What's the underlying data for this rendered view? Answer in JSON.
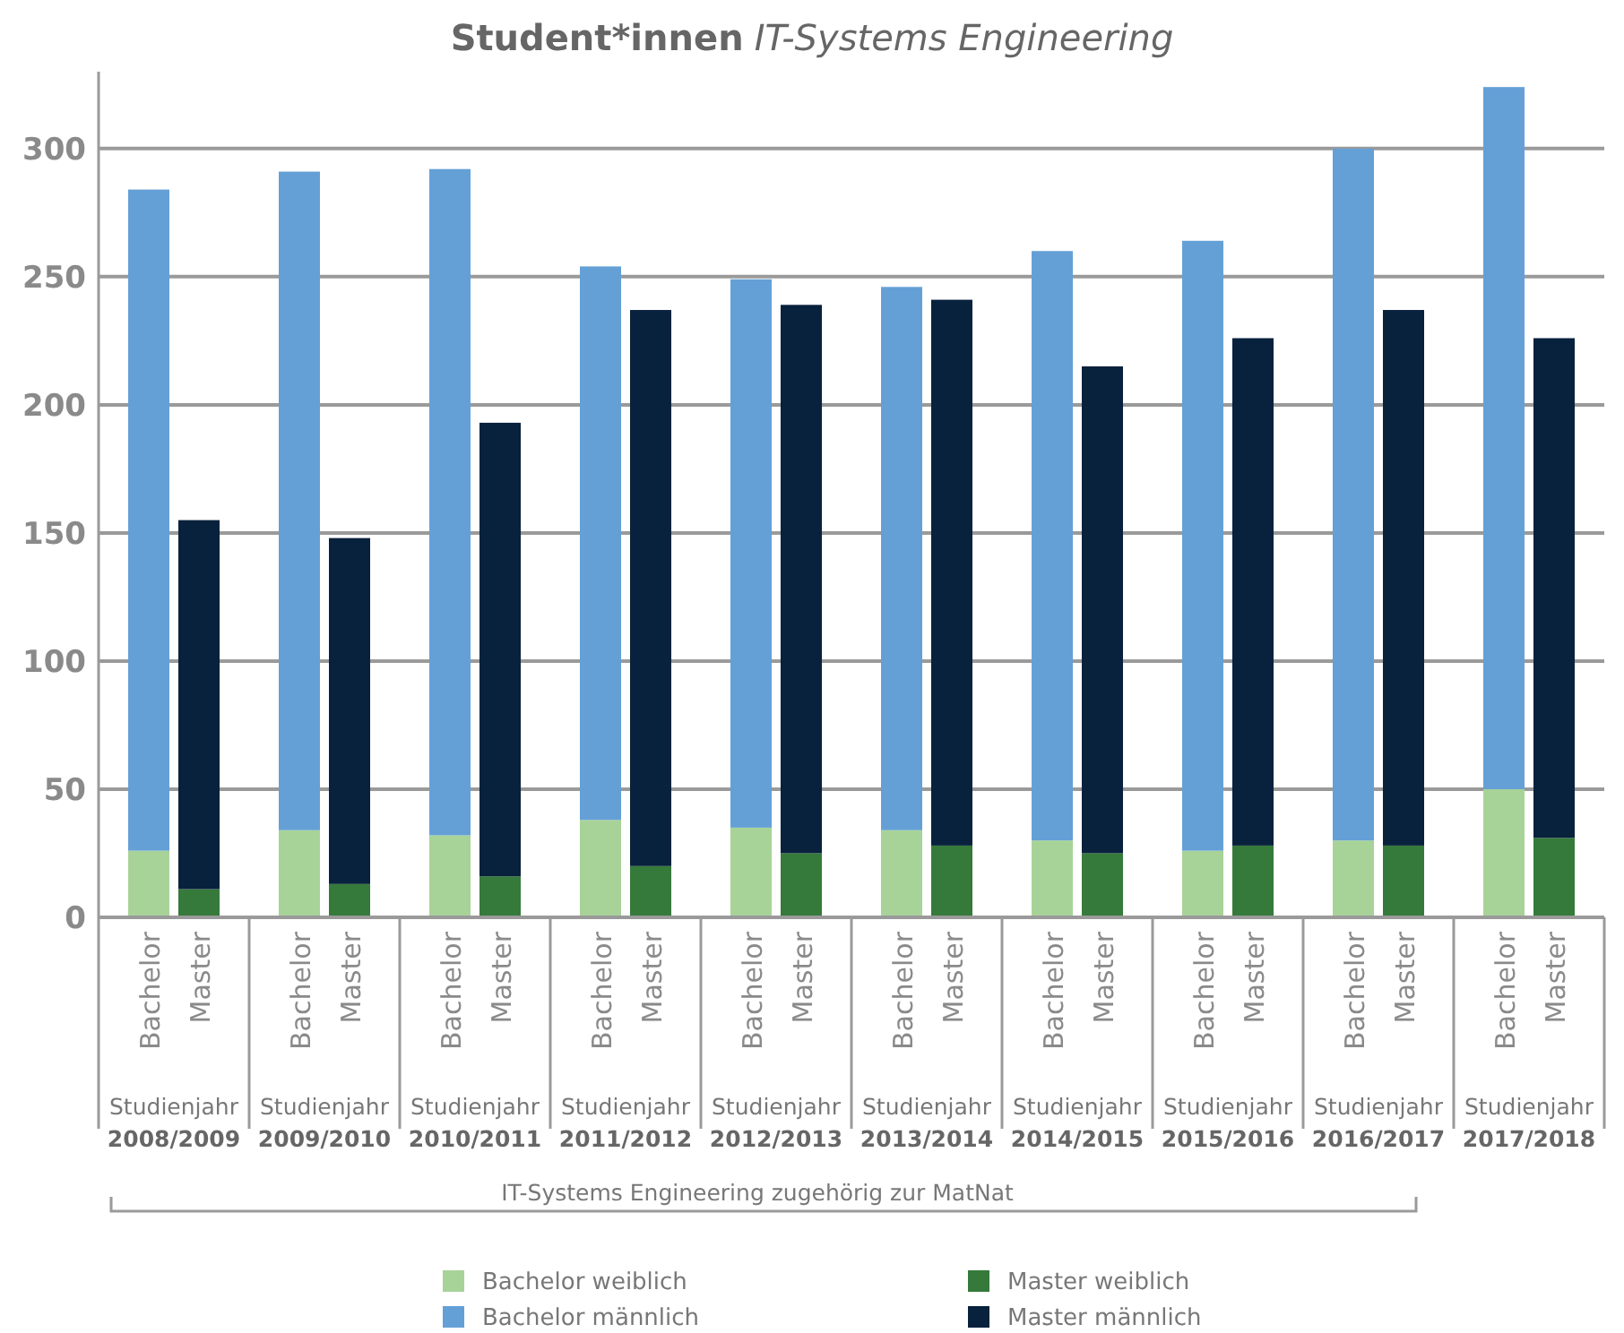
{
  "chart_data": {
    "type": "bar",
    "title": "Student*innen",
    "subtitle": "IT-Systems Engineering",
    "categories": [
      "Bachelor",
      "Master",
      "Bachelor",
      "Master",
      "Bachelor",
      "Master",
      "Bachelor",
      "Master",
      "Bachelor",
      "Master",
      "Bachelor",
      "Master",
      "Bachelor",
      "Master",
      "Bachelor",
      "Master",
      "Bachelor",
      "Master",
      "Bachelor",
      "Master"
    ],
    "stacked": true,
    "series": [
      {
        "name": "Bachelor weiblich",
        "color": "#a8d398",
        "values": [
          26,
          null,
          34,
          null,
          32,
          null,
          38,
          null,
          35,
          null,
          34,
          null,
          30,
          null,
          26,
          null,
          30,
          null,
          50,
          null
        ]
      },
      {
        "name": "Bachelor männlich",
        "color": "#64a0d6",
        "values": [
          258,
          null,
          257,
          null,
          260,
          null,
          216,
          null,
          214,
          null,
          212,
          null,
          230,
          null,
          238,
          null,
          270,
          null,
          274,
          null
        ]
      },
      {
        "name": "Master weiblich",
        "color": "#357a3a",
        "values": [
          null,
          11,
          null,
          13,
          null,
          16,
          null,
          20,
          null,
          25,
          null,
          28,
          null,
          25,
          null,
          28,
          null,
          28,
          null,
          31
        ]
      },
      {
        "name": "Master männlich",
        "color": "#08213c",
        "values": [
          null,
          144,
          null,
          135,
          null,
          177,
          null,
          217,
          null,
          214,
          null,
          213,
          null,
          190,
          null,
          198,
          null,
          209,
          null,
          195
        ]
      }
    ],
    "ylim": [
      0,
      330
    ],
    "yticks": [
      0,
      50,
      100,
      150,
      200,
      250,
      300
    ],
    "grid": "y",
    "legend": "bottom",
    "annotations": [
      "Studienjahr 2008/2009",
      "Studienjahr 2009/2010",
      "Studienjahr 2010/2011",
      "Studienjahr 2011/2012",
      "Studienjahr 2012/2013",
      "Studienjahr 2013/2014",
      "Studienjahr 2014/2015",
      "Studienjahr 2015/2016",
      "Studienjahr 2016/2017",
      "Studienjahr 2017/2018",
      "IT-Systems Engineering zugehörig zur MatNat"
    ]
  }
}
